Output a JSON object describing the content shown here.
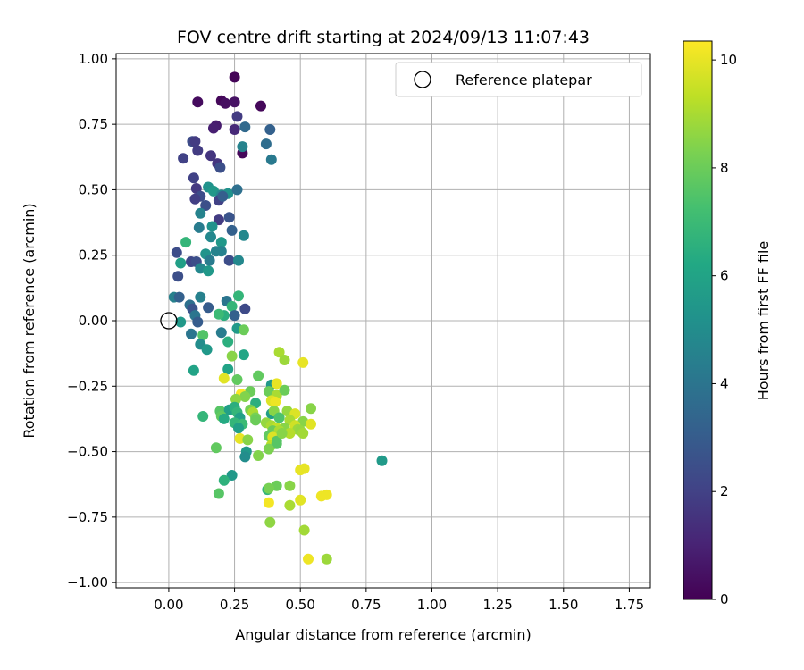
{
  "chart_data": {
    "type": "scatter",
    "title": "FOV centre drift starting at 2024/09/13 11:07:43",
    "xlabel": "Angular distance from reference (arcmin)",
    "ylabel": "Rotation from reference (arcmin)",
    "xlim": [
      -0.2,
      1.83
    ],
    "ylim": [
      -1.02,
      1.02
    ],
    "xticks": [
      "0.00",
      "0.25",
      "0.50",
      "0.75",
      "1.00",
      "1.25",
      "1.50",
      "1.75"
    ],
    "yticks": [
      "1.00",
      "0.75",
      "0.50",
      "0.25",
      "0.00",
      "−0.25",
      "−0.50",
      "−0.75",
      "−1.00"
    ],
    "grid": true,
    "legend": {
      "position": "top-right",
      "label": "Reference platepar"
    },
    "reference_point": [
      0,
      0
    ],
    "colormap": "viridis",
    "colorbar": {
      "label": "Hours from first FF file",
      "min": 0,
      "max": 10.35,
      "ticks": [
        "0",
        "2",
        "4",
        "6",
        "8",
        "10"
      ]
    },
    "points": [
      [
        0.25,
        0.93,
        0.1
      ],
      [
        0.35,
        0.82,
        0.2
      ],
      [
        0.11,
        0.835,
        0.3
      ],
      [
        0.2,
        0.84,
        0.2
      ],
      [
        0.215,
        0.83,
        0.4
      ],
      [
        0.25,
        0.835,
        0.5
      ],
      [
        0.26,
        0.78,
        1.8
      ],
      [
        0.18,
        0.745,
        0.8
      ],
      [
        0.17,
        0.735,
        0.9
      ],
      [
        0.25,
        0.73,
        1.2
      ],
      [
        0.28,
        0.64,
        0.2
      ],
      [
        0.29,
        0.74,
        3.5
      ],
      [
        0.37,
        0.675,
        3.7
      ],
      [
        0.385,
        0.73,
        3.2
      ],
      [
        0.28,
        0.665,
        4.6
      ],
      [
        0.39,
        0.615,
        4.2
      ],
      [
        0.09,
        0.685,
        2.4
      ],
      [
        0.1,
        0.685,
        1.8
      ],
      [
        0.11,
        0.65,
        1.8
      ],
      [
        0.055,
        0.62,
        2.0
      ],
      [
        0.16,
        0.63,
        1.6
      ],
      [
        0.185,
        0.6,
        1.6
      ],
      [
        0.195,
        0.585,
        2.5
      ],
      [
        0.095,
        0.545,
        2.0
      ],
      [
        0.105,
        0.505,
        1.7
      ],
      [
        0.12,
        0.475,
        2.4
      ],
      [
        0.15,
        0.51,
        5.2
      ],
      [
        0.17,
        0.495,
        5.5
      ],
      [
        0.2,
        0.48,
        4.8
      ],
      [
        0.225,
        0.485,
        5.2
      ],
      [
        0.26,
        0.5,
        3.8
      ],
      [
        0.1,
        0.465,
        1.9
      ],
      [
        0.14,
        0.44,
        2.5
      ],
      [
        0.19,
        0.46,
        2.0
      ],
      [
        0.205,
        0.475,
        3.1
      ],
      [
        0.12,
        0.41,
        4.6
      ],
      [
        0.19,
        0.385,
        1.8
      ],
      [
        0.23,
        0.395,
        2.7
      ],
      [
        0.115,
        0.355,
        4.3
      ],
      [
        0.165,
        0.36,
        5.2
      ],
      [
        0.24,
        0.345,
        3.2
      ],
      [
        0.16,
        0.32,
        4.8
      ],
      [
        0.2,
        0.3,
        5.5
      ],
      [
        0.285,
        0.325,
        4.8
      ],
      [
        0.065,
        0.3,
        6.8
      ],
      [
        0.2,
        0.265,
        4.5
      ],
      [
        0.03,
        0.26,
        2.4
      ],
      [
        0.14,
        0.255,
        5.3
      ],
      [
        0.18,
        0.265,
        4.6
      ],
      [
        0.085,
        0.225,
        2.2
      ],
      [
        0.105,
        0.225,
        2.5
      ],
      [
        0.155,
        0.23,
        4.3
      ],
      [
        0.23,
        0.23,
        2.4
      ],
      [
        0.265,
        0.23,
        4.8
      ],
      [
        0.045,
        0.22,
        5.8
      ],
      [
        0.12,
        0.2,
        4.8
      ],
      [
        0.15,
        0.19,
        5.5
      ],
      [
        0.035,
        0.17,
        2.5
      ],
      [
        0.02,
        0.09,
        4.5
      ],
      [
        0.04,
        0.09,
        3.2
      ],
      [
        0.12,
        0.09,
        4.5
      ],
      [
        0.08,
        0.06,
        3.8
      ],
      [
        0.09,
        0.045,
        2.7
      ],
      [
        0.15,
        0.05,
        3.0
      ],
      [
        0.22,
        0.075,
        4.0
      ],
      [
        0.24,
        0.055,
        6.8
      ],
      [
        0.265,
        0.095,
        6.8
      ],
      [
        0.29,
        0.045,
        2.3
      ],
      [
        0.21,
        0.02,
        6.5
      ],
      [
        0.25,
        0.02,
        3.2
      ],
      [
        0.1,
        0.02,
        4.0
      ],
      [
        0.19,
        0.025,
        7.0
      ],
      [
        0.11,
        -0.005,
        3.0
      ],
      [
        0.045,
        -0.005,
        5.5
      ],
      [
        0.2,
        -0.045,
        4.3
      ],
      [
        0.085,
        -0.05,
        4.0
      ],
      [
        0.13,
        -0.055,
        7.5
      ],
      [
        0.26,
        -0.03,
        5.6
      ],
      [
        0.285,
        -0.035,
        8.0
      ],
      [
        0.225,
        -0.08,
        6.5
      ],
      [
        0.12,
        -0.09,
        5.0
      ],
      [
        0.145,
        -0.11,
        5.5
      ],
      [
        0.285,
        -0.13,
        6.1
      ],
      [
        0.24,
        -0.135,
        8.5
      ],
      [
        0.095,
        -0.19,
        6.0
      ],
      [
        0.225,
        -0.185,
        6.0
      ],
      [
        0.21,
        -0.22,
        9.9
      ],
      [
        0.26,
        -0.225,
        7.8
      ],
      [
        0.34,
        -0.21,
        7.8
      ],
      [
        0.42,
        -0.12,
        9.0
      ],
      [
        0.44,
        -0.15,
        8.8
      ],
      [
        0.51,
        -0.16,
        10.0
      ],
      [
        0.39,
        -0.245,
        5.5
      ],
      [
        0.41,
        -0.24,
        10.0
      ],
      [
        0.38,
        -0.27,
        8.0
      ],
      [
        0.41,
        -0.285,
        9.0
      ],
      [
        0.44,
        -0.265,
        8.0
      ],
      [
        0.31,
        -0.27,
        8.0
      ],
      [
        0.275,
        -0.28,
        10.3
      ],
      [
        0.29,
        -0.29,
        8.4
      ],
      [
        0.255,
        -0.3,
        8.6
      ],
      [
        0.33,
        -0.315,
        6.5
      ],
      [
        0.39,
        -0.305,
        9.8
      ],
      [
        0.405,
        -0.31,
        10.1
      ],
      [
        0.195,
        -0.345,
        7.6
      ],
      [
        0.23,
        -0.34,
        5.8
      ],
      [
        0.25,
        -0.33,
        6.5
      ],
      [
        0.31,
        -0.34,
        8.2
      ],
      [
        0.26,
        -0.35,
        6.8
      ],
      [
        0.32,
        -0.35,
        9.0
      ],
      [
        0.39,
        -0.355,
        5.7
      ],
      [
        0.4,
        -0.345,
        8.5
      ],
      [
        0.45,
        -0.345,
        8.7
      ],
      [
        0.48,
        -0.355,
        9.8
      ],
      [
        0.54,
        -0.335,
        8.5
      ],
      [
        0.13,
        -0.365,
        6.8
      ],
      [
        0.2,
        -0.365,
        7.8
      ],
      [
        0.21,
        -0.375,
        6.3
      ],
      [
        0.27,
        -0.37,
        5.8
      ],
      [
        0.33,
        -0.37,
        8.2
      ],
      [
        0.42,
        -0.37,
        7.4
      ],
      [
        0.46,
        -0.38,
        9.0
      ],
      [
        0.51,
        -0.385,
        8.5
      ],
      [
        0.54,
        -0.395,
        9.9
      ],
      [
        0.25,
        -0.39,
        6.8
      ],
      [
        0.28,
        -0.395,
        7.0
      ],
      [
        0.33,
        -0.38,
        8.0
      ],
      [
        0.37,
        -0.39,
        8.7
      ],
      [
        0.39,
        -0.4,
        9.0
      ],
      [
        0.41,
        -0.41,
        9.4
      ],
      [
        0.44,
        -0.41,
        8.5
      ],
      [
        0.48,
        -0.4,
        9.6
      ],
      [
        0.49,
        -0.415,
        8.8
      ],
      [
        0.265,
        -0.41,
        5.8
      ],
      [
        0.395,
        -0.42,
        8.0
      ],
      [
        0.42,
        -0.42,
        9.0
      ],
      [
        0.46,
        -0.43,
        9.2
      ],
      [
        0.5,
        -0.42,
        8.7
      ],
      [
        0.51,
        -0.43,
        8.9
      ],
      [
        0.27,
        -0.45,
        10.0
      ],
      [
        0.3,
        -0.455,
        8.5
      ],
      [
        0.38,
        -0.44,
        7.8
      ],
      [
        0.395,
        -0.445,
        9.8
      ],
      [
        0.41,
        -0.46,
        7.6
      ],
      [
        0.43,
        -0.43,
        8.5
      ],
      [
        0.39,
        -0.475,
        9.3
      ],
      [
        0.41,
        -0.47,
        7.6
      ],
      [
        0.38,
        -0.49,
        8.3
      ],
      [
        0.18,
        -0.485,
        7.8
      ],
      [
        0.295,
        -0.5,
        5.5
      ],
      [
        0.29,
        -0.52,
        5.0
      ],
      [
        0.34,
        -0.515,
        8.4
      ],
      [
        0.81,
        -0.535,
        5.6
      ],
      [
        0.5,
        -0.57,
        10.0
      ],
      [
        0.515,
        -0.565,
        10.0
      ],
      [
        0.24,
        -0.59,
        5.5
      ],
      [
        0.21,
        -0.61,
        6.6
      ],
      [
        0.46,
        -0.63,
        8.5
      ],
      [
        0.41,
        -0.63,
        8.0
      ],
      [
        0.375,
        -0.645,
        6.8
      ],
      [
        0.38,
        -0.64,
        8.2
      ],
      [
        0.19,
        -0.66,
        7.6
      ],
      [
        0.58,
        -0.67,
        10.1
      ],
      [
        0.6,
        -0.665,
        10.1
      ],
      [
        0.5,
        -0.685,
        9.9
      ],
      [
        0.38,
        -0.695,
        10.2
      ],
      [
        0.46,
        -0.705,
        9.0
      ],
      [
        0.385,
        -0.77,
        8.6
      ],
      [
        0.515,
        -0.8,
        8.9
      ],
      [
        0.53,
        -0.91,
        10.1
      ],
      [
        0.6,
        -0.91,
        8.8
      ]
    ]
  }
}
